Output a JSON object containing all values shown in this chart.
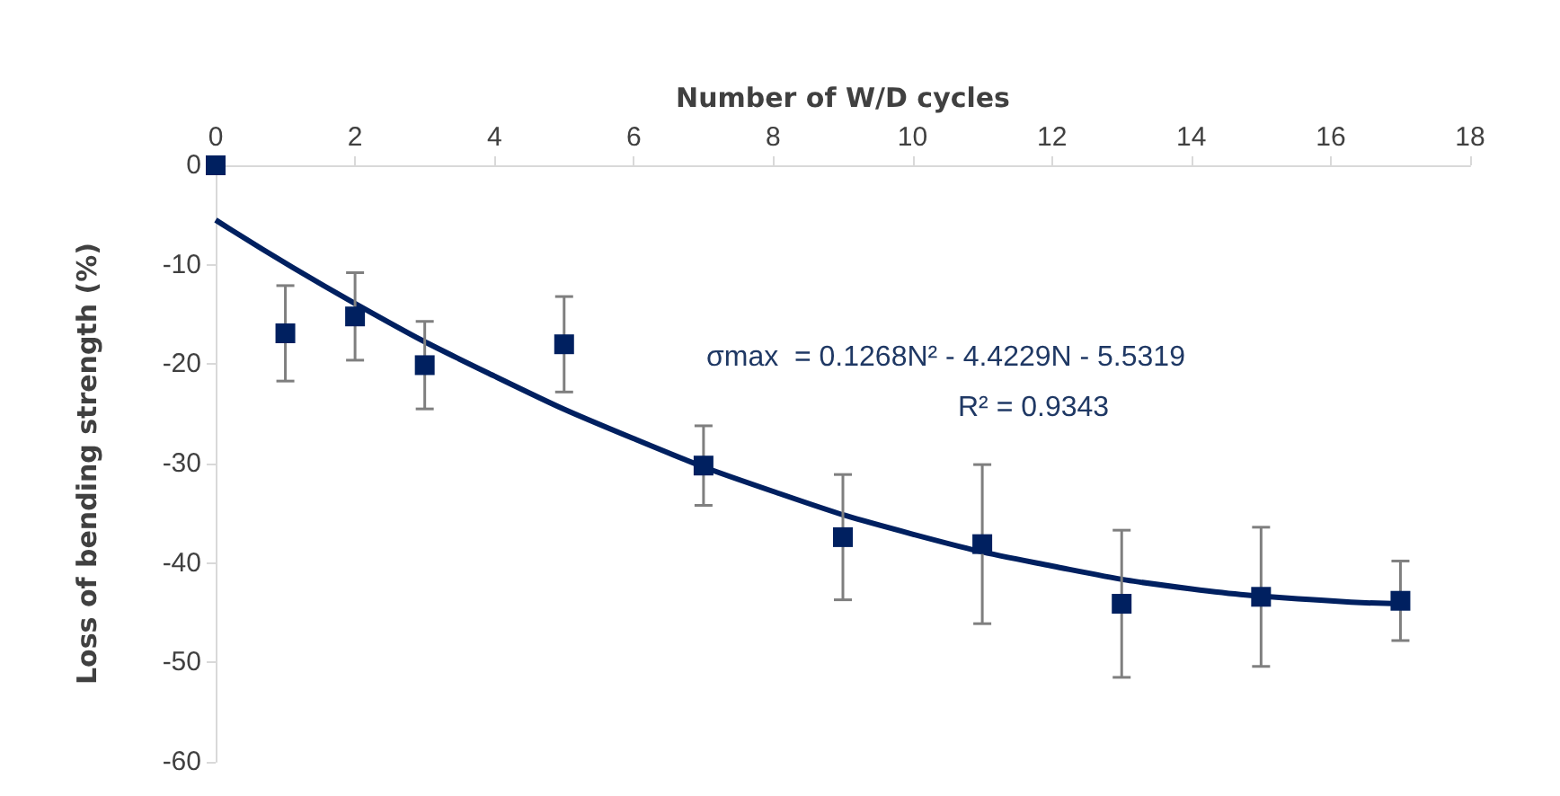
{
  "chart_data": {
    "type": "scatter",
    "xlabel": "Number of W/D cycles",
    "ylabel": "Loss of bending strength (%)",
    "xlim": [
      0,
      18
    ],
    "xticks": [
      0,
      2,
      4,
      6,
      8,
      10,
      12,
      14,
      16,
      18
    ],
    "ylim": [
      -60,
      0
    ],
    "yticks": [
      -60,
      -50,
      -40,
      -30,
      -20,
      -10,
      0
    ],
    "grid": false,
    "marker": "square",
    "series": [
      {
        "color": "#002060",
        "x": [
          0,
          1,
          2,
          3,
          5,
          7,
          9,
          11,
          13,
          15,
          17
        ],
        "values": [
          0,
          -16.9,
          -15.2,
          -20.1,
          -18,
          -30.2,
          -37.4,
          -38.1,
          -44.1,
          -43.4,
          -43.8
        ],
        "errors": [
          null,
          4.8,
          4.4,
          4.4,
          4.8,
          4,
          6.3,
          8,
          7.4,
          7,
          4
        ]
      },
      {
        "type": "line",
        "color": "#002060",
        "marker": "none",
        "line_style": "solid",
        "x": [
          0,
          2,
          4,
          6,
          8,
          10,
          12,
          14,
          16,
          17
        ],
        "values": [
          -5.5,
          -13.9,
          -21.2,
          -27.5,
          -32.8,
          -37.1,
          -40.3,
          -42.6,
          -43.8,
          -44.1
        ]
      }
    ],
    "annotations": [
      "σmax  = 0.1268N² - 4.4229N - 5.5319",
      "R² = 0.9343"
    ]
  }
}
